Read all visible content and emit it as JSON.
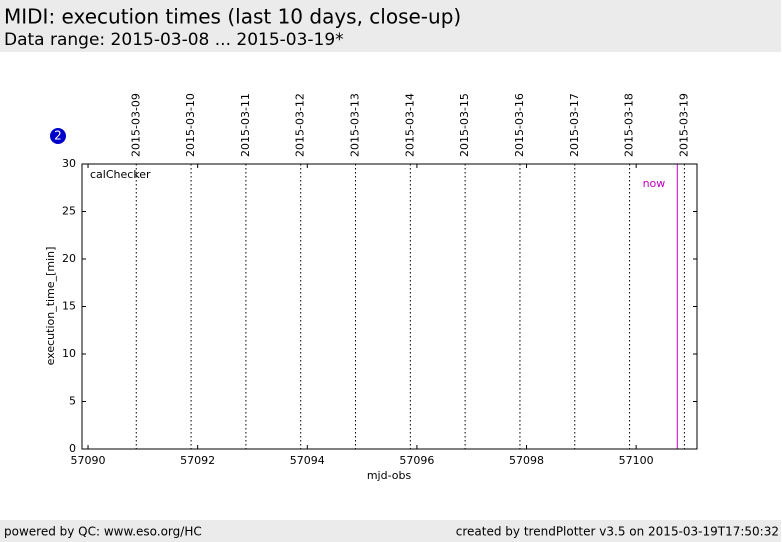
{
  "chart_data": {
    "type": "scatter",
    "title": "MIDI: execution times (last 10 days, close-up)",
    "subtitle": "Data range: 2015-03-08 ... 2015-03-19*",
    "xlabel": "mjd-obs",
    "ylabel": "execution_time_[min]",
    "badge": "2",
    "annotation": "calChecker",
    "series": [],
    "xlim": [
      57089.89,
      57101.11
    ],
    "xticks": [
      57090,
      57092,
      57094,
      57096,
      57098,
      57100
    ],
    "ylim": [
      0,
      30
    ],
    "yticks": [
      0,
      5,
      10,
      15,
      20,
      25,
      30
    ],
    "date_markers": {
      "x": [
        57090.88,
        57091.88,
        57092.88,
        57093.88,
        57094.88,
        57095.88,
        57096.88,
        57097.88,
        57098.88,
        57099.88,
        57100.88
      ],
      "labels": [
        "2015-03-09",
        "2015-03-10",
        "2015-03-11",
        "2015-03-12",
        "2015-03-13",
        "2015-03-14",
        "2015-03-15",
        "2015-03-16",
        "2015-03-17",
        "2015-03-18",
        "2015-03-19"
      ]
    },
    "now_marker": {
      "x": 57100.75,
      "label": "now",
      "color": "#c000c0"
    }
  },
  "footer": {
    "left": "powered by QC: www.eso.org/HC",
    "right": "created by trendPlotter v3.5 on 2015-03-19T17:50:32"
  }
}
